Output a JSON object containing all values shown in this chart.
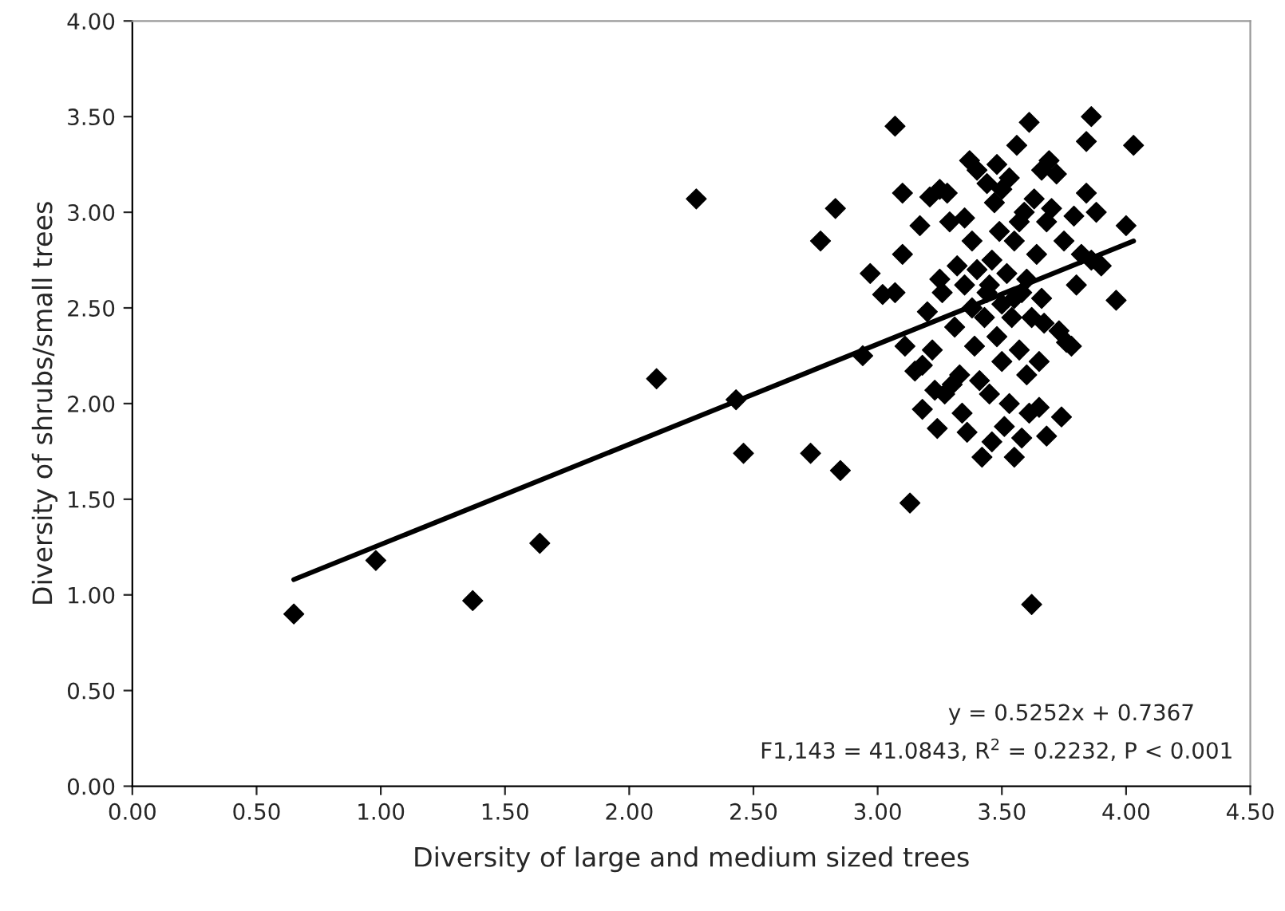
{
  "chart_data": {
    "type": "scatter",
    "xlabel": "Diversity of large and medium sized trees",
    "ylabel": "Diversity of shrubs/small trees",
    "grid": false,
    "legend": false,
    "xlim": [
      0,
      4.5
    ],
    "ylim": [
      0,
      4
    ],
    "xticks": [
      {
        "value": 0,
        "label": "0.00"
      },
      {
        "value": 0.5,
        "label": "0.50"
      },
      {
        "value": 1,
        "label": "1.00"
      },
      {
        "value": 1.5,
        "label": "1.50"
      },
      {
        "value": 2,
        "label": "2.00"
      },
      {
        "value": 2.5,
        "label": "2.50"
      },
      {
        "value": 3,
        "label": "3.00"
      },
      {
        "value": 3.5,
        "label": "3.50"
      },
      {
        "value": 4,
        "label": "4.00"
      },
      {
        "value": 4.5,
        "label": "4.50"
      }
    ],
    "yticks": [
      {
        "value": 0,
        "label": "0.00"
      },
      {
        "value": 0.5,
        "label": "0.50"
      },
      {
        "value": 1,
        "label": "1.00"
      },
      {
        "value": 1.5,
        "label": "1.50"
      },
      {
        "value": 2,
        "label": "2.00"
      },
      {
        "value": 2.5,
        "label": "2.50"
      },
      {
        "value": 3,
        "label": "3.00"
      },
      {
        "value": 3.5,
        "label": "3.50"
      },
      {
        "value": 4,
        "label": "4.00"
      }
    ],
    "annotations": [
      "y = 0.5252x + 0.7367",
      "F1,143 = 41.0843, R$^{2}$ = 0.2232, P < 0.001"
    ],
    "series": [
      {
        "marker": "diamond",
        "color": "#000000",
        "x": [
          0.65,
          0.98,
          1.37,
          1.64,
          2.11,
          2.43,
          2.27,
          2.46,
          2.73,
          2.85,
          2.77,
          2.83,
          2.94,
          2.97,
          3.02,
          3.07,
          3.07,
          3.1,
          3.1,
          3.11,
          3.13,
          3.15,
          3.17,
          3.18,
          3.18,
          3.2,
          3.21,
          3.22,
          3.23,
          3.24,
          3.25,
          3.25,
          3.26,
          3.27,
          3.28,
          3.29,
          3.3,
          3.31,
          3.32,
          3.33,
          3.34,
          3.35,
          3.35,
          3.36,
          3.37,
          3.38,
          3.39,
          3.4,
          3.4,
          3.41,
          3.42,
          3.43,
          3.44,
          3.44,
          3.45,
          3.46,
          3.46,
          3.47,
          3.48,
          3.49,
          3.5,
          3.5,
          3.5,
          3.51,
          3.52,
          3.53,
          3.53,
          3.54,
          3.55,
          3.55,
          3.56,
          3.57,
          3.58,
          3.58,
          3.59,
          3.6,
          3.6,
          3.61,
          3.61,
          3.62,
          3.62,
          3.63,
          3.64,
          3.65,
          3.65,
          3.66,
          3.67,
          3.68,
          3.68,
          3.69,
          3.7,
          3.72,
          3.73,
          3.74,
          3.75,
          3.76,
          3.78,
          3.79,
          3.8,
          3.82,
          3.84,
          3.84,
          3.86,
          3.86,
          3.88,
          3.9,
          3.96,
          4.0,
          4.03,
          3.45,
          3.55,
          3.48,
          3.38,
          3.57,
          3.66
        ],
        "values": [
          0.9,
          1.18,
          0.97,
          1.27,
          2.13,
          2.02,
          3.07,
          1.74,
          1.74,
          1.65,
          2.85,
          3.02,
          2.25,
          2.68,
          2.57,
          2.58,
          3.45,
          3.1,
          2.78,
          2.3,
          1.48,
          2.17,
          2.93,
          2.2,
          1.97,
          2.48,
          3.08,
          2.28,
          2.07,
          1.87,
          3.12,
          2.65,
          2.58,
          2.05,
          3.1,
          2.95,
          2.1,
          2.4,
          2.72,
          2.15,
          1.95,
          2.97,
          2.62,
          1.85,
          3.27,
          2.5,
          2.3,
          3.22,
          2.7,
          2.12,
          1.72,
          2.45,
          3.15,
          2.58,
          2.05,
          1.8,
          2.75,
          3.05,
          2.35,
          2.9,
          3.12,
          2.52,
          2.22,
          1.88,
          2.68,
          3.18,
          2.0,
          2.45,
          1.72,
          2.85,
          3.35,
          2.28,
          2.58,
          1.82,
          3.0,
          2.15,
          2.65,
          3.47,
          1.95,
          2.45,
          0.95,
          3.07,
          2.78,
          2.22,
          1.98,
          3.22,
          2.42,
          2.95,
          1.83,
          3.27,
          3.02,
          3.2,
          2.38,
          1.93,
          2.85,
          2.32,
          2.3,
          2.98,
          2.62,
          2.78,
          3.1,
          3.37,
          3.5,
          2.75,
          3.0,
          2.72,
          2.54,
          2.93,
          3.35,
          2.62,
          2.55,
          3.25,
          2.85,
          2.95,
          2.55
        ]
      },
      {
        "type": "line",
        "color": "#000000",
        "x": [
          0.65,
          4.03
        ],
        "values": [
          1.08,
          2.85
        ]
      }
    ]
  }
}
